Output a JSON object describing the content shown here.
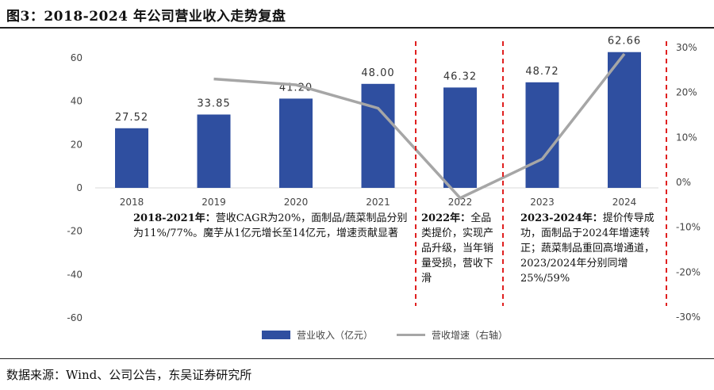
{
  "title": "图3：2018-2024 年公司营业收入走势复盘",
  "source": "数据来源：Wind、公司公告，东吴证券研究所",
  "chart_data": {
    "type": "bar",
    "categories": [
      "2018",
      "2019",
      "2020",
      "2021",
      "2022",
      "2023",
      "2024"
    ],
    "series": [
      {
        "name": "营业收入（亿元）",
        "type": "bar",
        "axis": "left",
        "values": [
          27.52,
          33.85,
          41.2,
          48.0,
          46.32,
          48.72,
          62.66
        ],
        "labels": [
          "27.52",
          "33.85",
          "41.20",
          "48.00",
          "46.32",
          "48.72",
          "62.66"
        ],
        "color": "#2f4fa0"
      },
      {
        "name": "营收增速（右轴）",
        "type": "line",
        "axis": "right",
        "values": [
          null,
          23.0,
          21.7,
          16.5,
          -3.5,
          5.2,
          28.6
        ],
        "color": "#a6a6a6"
      }
    ],
    "left_axis": {
      "ylim": [
        -60,
        60
      ],
      "ticks": [
        "-60",
        "-40",
        "-20",
        "0",
        "20",
        "40",
        "60"
      ],
      "tick_values": [
        -60,
        -40,
        -20,
        0,
        20,
        40,
        60
      ]
    },
    "right_axis": {
      "ylim": [
        -30,
        30
      ],
      "ticks": [
        "-30%",
        "-20%",
        "-10%",
        "0%",
        "10%",
        "20%",
        "30%"
      ],
      "tick_values": [
        -30,
        -20,
        -10,
        0,
        10,
        20,
        30
      ]
    },
    "legend": {
      "position": "bottom-center",
      "bar_label": "营业收入（亿元）",
      "line_label": "营收增速（右轴）"
    },
    "annotations": {
      "note1_head": "2018-2021年：",
      "note1_body": "营收CAGR为20%，面制品/蔬菜制品分别为11%/77%。魔芋从1亿元增长至14亿元，增速贡献显著",
      "note2_head": "2022年：",
      "note2_body": "全品类提价，实现产品升级，当年销量受损，营收下滑",
      "note3_head": "2023-2024年：",
      "note3_body": "提价传导成功，面制品于2024年增速转正；蔬菜制品重回高增通道，2023/2024年分别同增25%/59%"
    },
    "divider_color": "#e02020"
  }
}
